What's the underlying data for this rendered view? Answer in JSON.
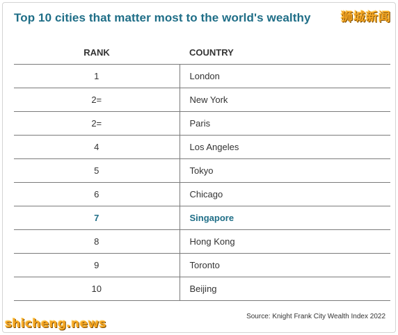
{
  "title": "Top 10 cities that matter most to the world's wealthy",
  "watermark_top": "狮城新闻",
  "watermark_bottom": "shicheng.news",
  "headers": {
    "rank": "RANK",
    "country": "COUNTRY"
  },
  "rows": [
    {
      "rank": "1",
      "city": "London"
    },
    {
      "rank": "2=",
      "city": "New York"
    },
    {
      "rank": "2=",
      "city": "Paris"
    },
    {
      "rank": "4",
      "city": "Los Angeles"
    },
    {
      "rank": "5",
      "city": "Tokyo"
    },
    {
      "rank": "6",
      "city": "Chicago"
    },
    {
      "rank": "7",
      "city": "Singapore"
    },
    {
      "rank": "8",
      "city": "Hong Kong"
    },
    {
      "rank": "9",
      "city": "Toronto"
    },
    {
      "rank": "10",
      "city": "Beijing"
    }
  ],
  "source": "Source: Knight Frank City Wealth Index 2022",
  "colors": {
    "accent": "#1f6e87",
    "watermark": "#f5a623"
  }
}
